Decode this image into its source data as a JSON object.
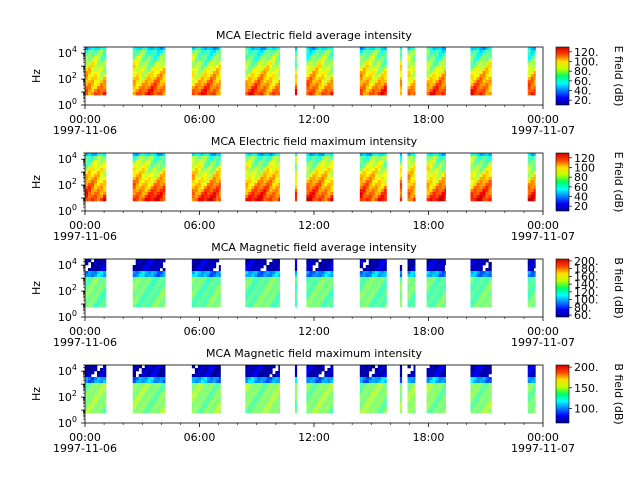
{
  "chart_data": [
    {
      "type": "heatmap",
      "title": "MCA  Electric field average intensity",
      "ylabel": "Hz",
      "yscale": "log",
      "ylim": [
        1,
        30000
      ],
      "y_ticks": [
        {
          "base": "10",
          "exp": "0"
        },
        {
          "base": "10",
          "exp": "2"
        },
        {
          "base": "10",
          "exp": "4"
        }
      ],
      "x_ticks": [
        "00:00",
        "06:00",
        "12:00",
        "18:00",
        "00:00"
      ],
      "x_dates": {
        "start": "1997-11-06",
        "end": "1997-11-07"
      },
      "colorbar": {
        "label": "E field (dB)",
        "ticks": [
          20,
          40,
          60,
          80,
          100,
          120
        ],
        "range": [
          10,
          130
        ],
        "tick_suffix": "."
      },
      "quantity": "E",
      "stat": "avg",
      "data_windows_hours": [
        [
          0.0,
          1.1
        ],
        [
          2.5,
          4.2
        ],
        [
          5.6,
          7.1
        ],
        [
          8.4,
          10.2
        ],
        [
          11.0,
          11.1
        ],
        [
          11.6,
          13.0
        ],
        [
          14.4,
          15.8
        ],
        [
          16.5,
          16.6
        ],
        [
          16.9,
          17.3
        ],
        [
          17.9,
          18.9
        ],
        [
          20.2,
          21.3
        ],
        [
          23.2,
          23.6
        ]
      ]
    },
    {
      "type": "heatmap",
      "title": "MCA  Electric field maximum intensity",
      "ylabel": "Hz",
      "yscale": "log",
      "ylim": [
        1,
        30000
      ],
      "y_ticks": [
        {
          "base": "10",
          "exp": "0"
        },
        {
          "base": "10",
          "exp": "2"
        },
        {
          "base": "10",
          "exp": "4"
        }
      ],
      "x_ticks": [
        "00:00",
        "06:00",
        "12:00",
        "18:00",
        "00:00"
      ],
      "x_dates": {
        "start": "1997-11-06",
        "end": "1997-11-07"
      },
      "colorbar": {
        "label": "E field (dB)",
        "ticks": [
          20,
          40,
          60,
          80,
          100,
          120
        ],
        "range": [
          10,
          130
        ],
        "tick_suffix": ""
      },
      "quantity": "E",
      "stat": "max",
      "data_windows_hours": [
        [
          0.0,
          1.1
        ],
        [
          2.5,
          4.2
        ],
        [
          5.6,
          7.1
        ],
        [
          8.4,
          10.2
        ],
        [
          11.0,
          11.1
        ],
        [
          11.6,
          13.0
        ],
        [
          14.4,
          15.8
        ],
        [
          16.5,
          16.6
        ],
        [
          16.9,
          17.3
        ],
        [
          17.9,
          18.9
        ],
        [
          20.2,
          21.3
        ],
        [
          23.2,
          23.6
        ]
      ]
    },
    {
      "type": "heatmap",
      "title": "MCA  Magnetic field average intensity",
      "ylabel": "Hz",
      "yscale": "log",
      "ylim": [
        1,
        30000
      ],
      "y_ticks": [
        {
          "base": "10",
          "exp": "0"
        },
        {
          "base": "10",
          "exp": "2"
        },
        {
          "base": "10",
          "exp": "4"
        }
      ],
      "x_ticks": [
        "00:00",
        "06:00",
        "12:00",
        "18:00",
        "00:00"
      ],
      "x_dates": {
        "start": "1997-11-06",
        "end": "1997-11-07"
      },
      "colorbar": {
        "label": "B field (dB)",
        "ticks": [
          60,
          80,
          100,
          120,
          140,
          160,
          180,
          200
        ],
        "range": [
          55,
          205
        ],
        "tick_suffix": "."
      },
      "quantity": "B",
      "stat": "avg",
      "data_windows_hours": [
        [
          0.0,
          1.1
        ],
        [
          2.5,
          4.2
        ],
        [
          5.6,
          7.1
        ],
        [
          8.4,
          10.2
        ],
        [
          11.0,
          11.1
        ],
        [
          11.6,
          13.0
        ],
        [
          14.4,
          15.8
        ],
        [
          16.5,
          16.6
        ],
        [
          16.9,
          17.3
        ],
        [
          17.9,
          18.9
        ],
        [
          20.2,
          21.3
        ],
        [
          23.2,
          23.6
        ]
      ]
    },
    {
      "type": "heatmap",
      "title": "MCA  Magnetic field maximum intensity",
      "ylabel": "Hz",
      "yscale": "log",
      "ylim": [
        1,
        30000
      ],
      "y_ticks": [
        {
          "base": "10",
          "exp": "0"
        },
        {
          "base": "10",
          "exp": "2"
        },
        {
          "base": "10",
          "exp": "4"
        }
      ],
      "x_ticks": [
        "00:00",
        "06:00",
        "12:00",
        "18:00",
        "00:00"
      ],
      "x_dates": {
        "start": "1997-11-06",
        "end": "1997-11-07"
      },
      "colorbar": {
        "label": "B field (dB)",
        "ticks": [
          100,
          150,
          200
        ],
        "range": [
          65,
          205
        ],
        "tick_suffix": "."
      },
      "quantity": "B",
      "stat": "max",
      "data_windows_hours": [
        [
          0.0,
          1.1
        ],
        [
          2.5,
          4.2
        ],
        [
          5.6,
          7.1
        ],
        [
          8.4,
          10.2
        ],
        [
          11.0,
          11.1
        ],
        [
          11.6,
          13.0
        ],
        [
          14.4,
          15.8
        ],
        [
          16.5,
          16.6
        ],
        [
          16.9,
          17.3
        ],
        [
          17.9,
          18.9
        ],
        [
          20.2,
          21.3
        ],
        [
          23.2,
          23.6
        ]
      ]
    }
  ]
}
